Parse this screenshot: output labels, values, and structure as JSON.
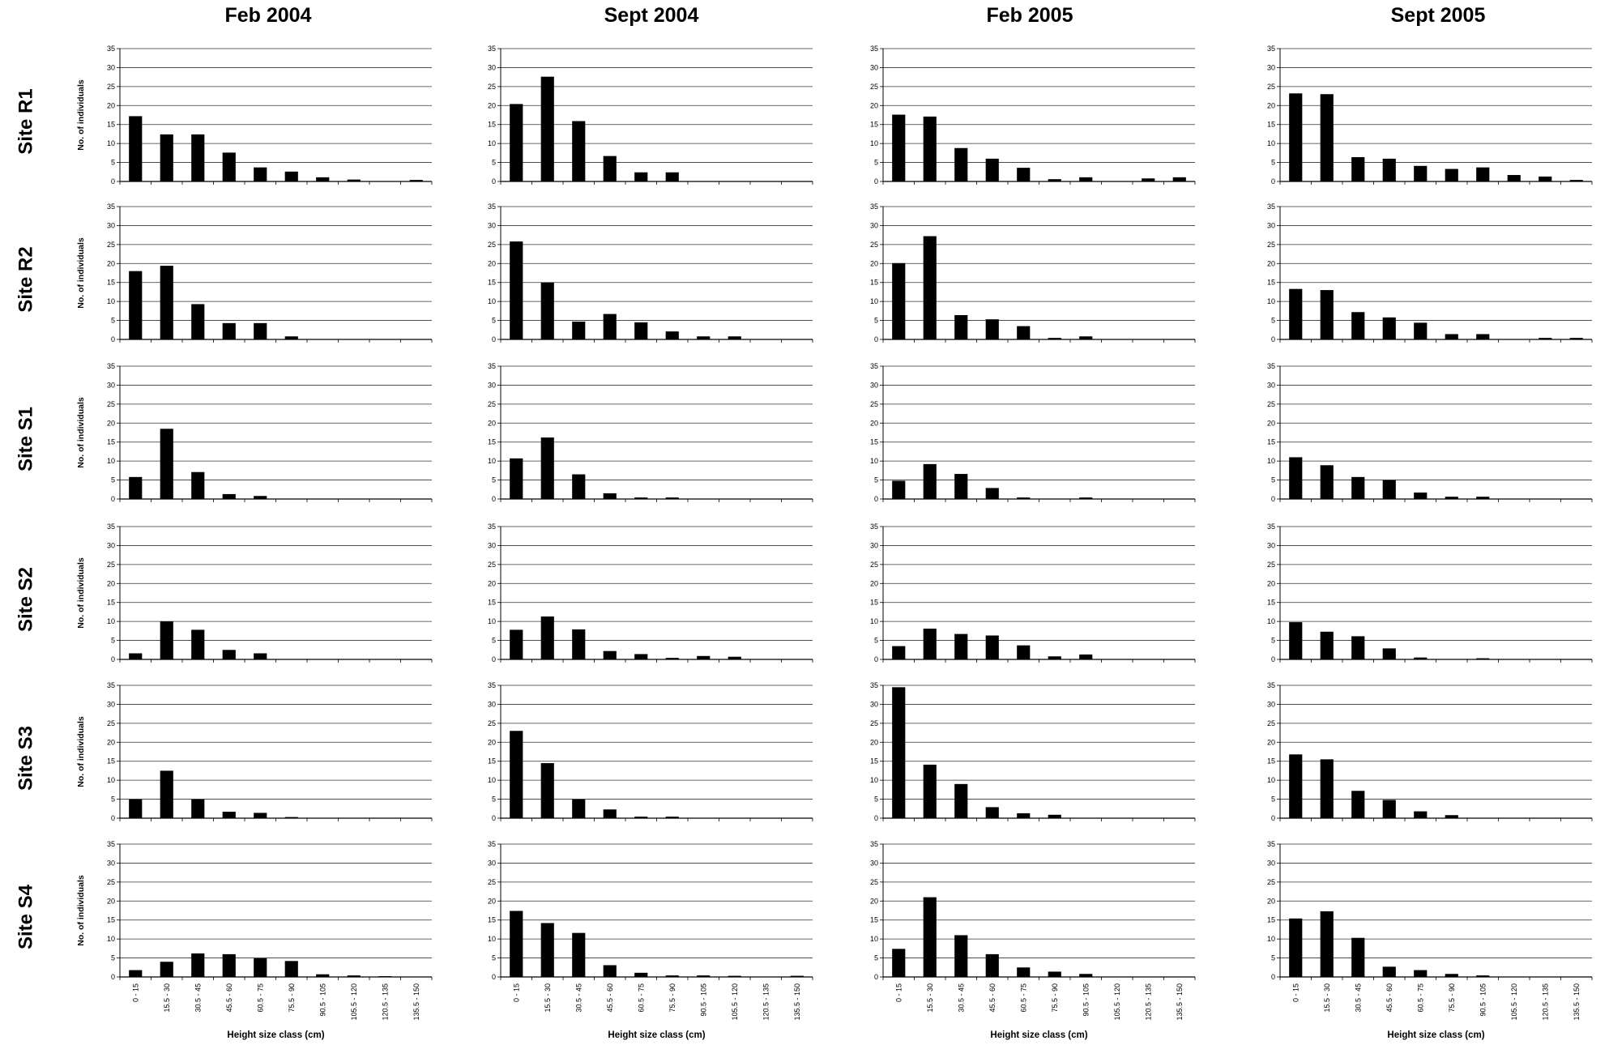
{
  "columns": [
    "Feb 2004",
    "Sept 2004",
    "Feb 2005",
    "Sept 2005"
  ],
  "rows": [
    "Site R1",
    "Site R2",
    "Site S1",
    "Site S2",
    "Site S3",
    "Site S4"
  ],
  "ylabel": "No. of individuals",
  "xlabel": "Height size class (cm)",
  "chart_data": {
    "type": "bar",
    "categories": [
      "0 - 15",
      "15.5 - 30",
      "30.5 - 45",
      "45.5 - 60",
      "60.5 - 75",
      "75.5 - 90",
      "90.5 - 105",
      "105.5 - 120",
      "120.5 - 135",
      "135.5 - 150"
    ],
    "ylim": [
      0,
      35
    ],
    "yticks": [
      0,
      5,
      10,
      15,
      20,
      25,
      30,
      35
    ],
    "grid": true,
    "bar_color": "#000000",
    "panels": [
      {
        "row": "Site R1",
        "column": "Feb 2004",
        "values": [
          17.2,
          12.4,
          12.4,
          7.6,
          3.7,
          2.6,
          1.1,
          0.5,
          0,
          0.4
        ]
      },
      {
        "row": "Site R1",
        "column": "Sept 2004",
        "values": [
          20.4,
          27.6,
          15.9,
          6.7,
          2.4,
          2.4,
          0,
          0,
          0,
          0
        ]
      },
      {
        "row": "Site R1",
        "column": "Feb 2005",
        "values": [
          17.6,
          17.1,
          8.8,
          6.0,
          3.6,
          0.6,
          1.1,
          0,
          0.8,
          1.1
        ]
      },
      {
        "row": "Site R1",
        "column": "Sept 2005",
        "values": [
          23.2,
          23.0,
          6.4,
          6.0,
          4.1,
          3.3,
          3.7,
          1.7,
          1.3,
          0.4
        ]
      },
      {
        "row": "Site R2",
        "column": "Feb 2004",
        "values": [
          18.0,
          19.4,
          9.3,
          4.3,
          4.3,
          0.8,
          0,
          0,
          0,
          0
        ]
      },
      {
        "row": "Site R2",
        "column": "Sept 2004",
        "values": [
          25.8,
          15.0,
          4.7,
          6.7,
          4.5,
          2.1,
          0.8,
          0.8,
          0,
          0
        ]
      },
      {
        "row": "Site R2",
        "column": "Feb 2005",
        "values": [
          20.1,
          27.2,
          6.4,
          5.3,
          3.5,
          0.4,
          0.8,
          0,
          0,
          0
        ]
      },
      {
        "row": "Site R2",
        "column": "Sept 2005",
        "values": [
          13.3,
          13.0,
          7.2,
          5.8,
          4.4,
          1.4,
          1.4,
          0,
          0.4,
          0.4
        ]
      },
      {
        "row": "Site S1",
        "column": "Feb 2004",
        "values": [
          5.8,
          18.5,
          7.1,
          1.3,
          0.8,
          0,
          0,
          0,
          0,
          0
        ]
      },
      {
        "row": "Site S1",
        "column": "Sept 2004",
        "values": [
          10.7,
          16.2,
          6.5,
          1.5,
          0.4,
          0.4,
          0,
          0,
          0,
          0
        ]
      },
      {
        "row": "Site S1",
        "column": "Feb 2005",
        "values": [
          4.8,
          9.2,
          6.6,
          2.9,
          0.4,
          0,
          0.4,
          0,
          0,
          0
        ]
      },
      {
        "row": "Site S1",
        "column": "Sept 2005",
        "values": [
          11.0,
          8.9,
          5.8,
          5.0,
          1.7,
          0.6,
          0.6,
          0,
          0,
          0
        ]
      },
      {
        "row": "Site S2",
        "column": "Feb 2004",
        "values": [
          1.6,
          10.0,
          7.8,
          2.5,
          1.6,
          0,
          0,
          0,
          0,
          0
        ]
      },
      {
        "row": "Site S2",
        "column": "Sept 2004",
        "values": [
          7.8,
          11.3,
          7.9,
          2.2,
          1.4,
          0.4,
          0.9,
          0.7,
          0,
          0
        ]
      },
      {
        "row": "Site S2",
        "column": "Feb 2005",
        "values": [
          3.5,
          8.1,
          6.7,
          6.3,
          3.7,
          0.8,
          1.3,
          0,
          0,
          0
        ]
      },
      {
        "row": "Site S2",
        "column": "Sept 2005",
        "values": [
          9.8,
          7.3,
          6.1,
          2.9,
          0.5,
          0,
          0.3,
          0,
          0,
          0
        ]
      },
      {
        "row": "Site S3",
        "column": "Feb 2004",
        "values": [
          5.0,
          12.5,
          5.0,
          1.7,
          1.4,
          0.3,
          0,
          0,
          0,
          0
        ]
      },
      {
        "row": "Site S3",
        "column": "Sept 2004",
        "values": [
          23.0,
          14.5,
          5.0,
          2.3,
          0.4,
          0.4,
          0,
          0,
          0,
          0
        ]
      },
      {
        "row": "Site S3",
        "column": "Feb 2005",
        "values": [
          34.5,
          14.1,
          9.0,
          2.9,
          1.3,
          0.9,
          0,
          0,
          0,
          0
        ]
      },
      {
        "row": "Site S3",
        "column": "Sept 2005",
        "values": [
          16.8,
          15.5,
          7.2,
          4.8,
          1.8,
          0.8,
          0,
          0,
          0,
          0
        ]
      },
      {
        "row": "Site S4",
        "column": "Feb 2004",
        "values": [
          1.8,
          4.0,
          6.2,
          6.0,
          4.9,
          4.2,
          0.7,
          0.4,
          0.2,
          0
        ]
      },
      {
        "row": "Site S4",
        "column": "Sept 2004",
        "values": [
          17.4,
          14.2,
          11.6,
          3.1,
          1.1,
          0.4,
          0.4,
          0.3,
          0,
          0.3
        ]
      },
      {
        "row": "Site S4",
        "column": "Feb 2005",
        "values": [
          7.4,
          21.0,
          11.0,
          6.0,
          2.5,
          1.4,
          0.8,
          0,
          0,
          0
        ]
      },
      {
        "row": "Site S4",
        "column": "Sept 2005",
        "values": [
          15.4,
          17.3,
          10.3,
          2.7,
          1.8,
          0.8,
          0.4,
          0,
          0,
          0
        ]
      }
    ]
  }
}
